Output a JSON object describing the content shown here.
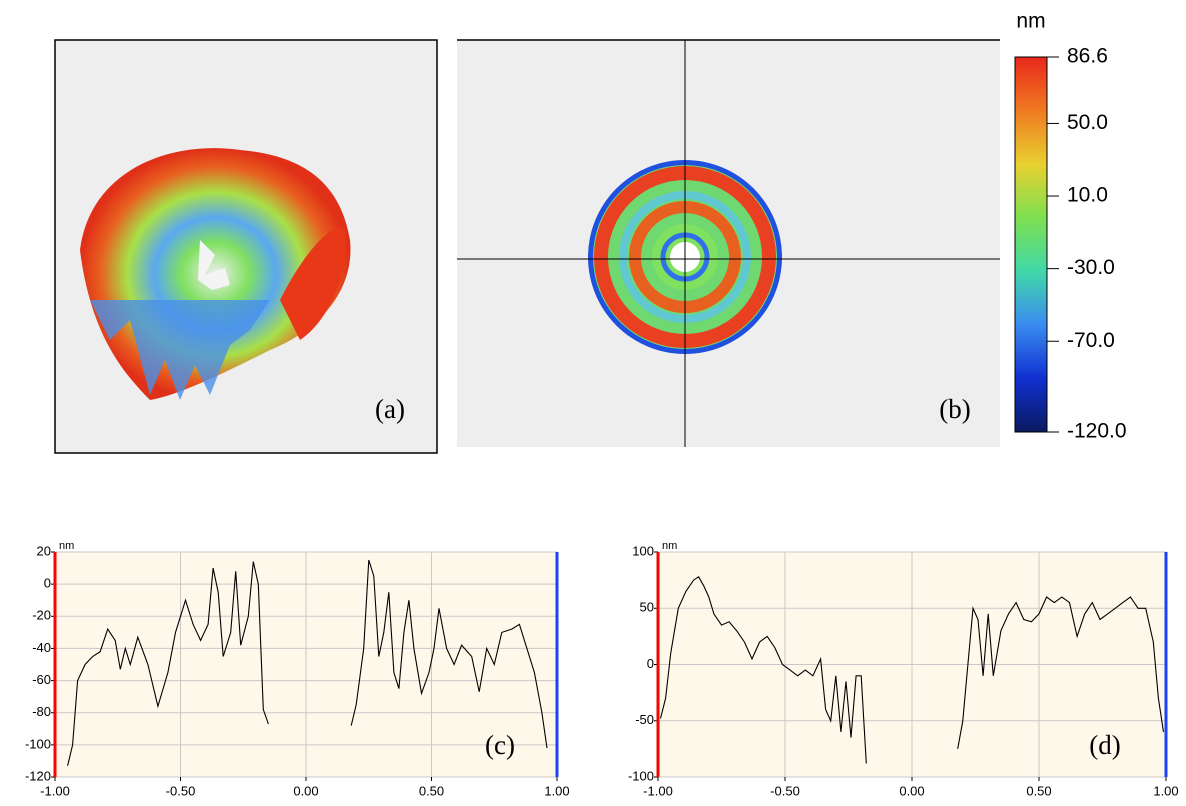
{
  "chart_data": [
    {
      "type": "surface",
      "label": "(a)"
    },
    {
      "type": "map",
      "label": "(b)",
      "colorbar": {
        "title": "nm",
        "lim": [
          -120,
          86.6
        ],
        "ticks": [
          86.6,
          {
            "value": 50,
            "label": "50.0"
          },
          {
            "value": 10,
            "label": "10.0"
          },
          {
            "value": -30,
            "label": "-30.0"
          },
          {
            "value": -70,
            "label": "-70.0"
          },
          {
            "value": -120,
            "label": "-120.0"
          }
        ],
        "colors": [
          "#e8281c",
          "#f07a20",
          "#e8d030",
          "#7ee050",
          "#40d8a8",
          "#3a8cf0",
          "#1030d0",
          "#0a1a60"
        ]
      }
    },
    {
      "type": "line",
      "label": "(c)",
      "y_unit": "nm",
      "background": "#fdf8ea",
      "left_edge_color": "#ff0000",
      "right_edge_color": "#2040ff",
      "grid": true,
      "xlim": [
        -1,
        1
      ],
      "xticks": [
        {
          "value": -1,
          "label": "-1.00"
        },
        {
          "value": -0.5,
          "label": "-0.50"
        },
        {
          "value": 0,
          "label": "0.00"
        },
        {
          "value": 0.5,
          "label": "0.50"
        },
        {
          "value": 1,
          "label": "1.00"
        }
      ],
      "ylim": [
        -120,
        20
      ],
      "yticks": [
        -120,
        -100,
        -80,
        -60,
        -40,
        -20,
        0,
        20
      ],
      "series": [
        {
          "color": "#000000",
          "x": [
            -0.95,
            -0.93,
            -0.91,
            -0.88,
            -0.85,
            -0.82,
            -0.79,
            -0.76,
            -0.74,
            -0.72,
            -0.7,
            -0.67,
            -0.63,
            -0.59,
            -0.55,
            -0.52,
            -0.48,
            -0.45,
            -0.42,
            -0.39,
            -0.37,
            -0.35,
            -0.33,
            -0.3,
            -0.28,
            -0.26,
            -0.23,
            -0.21,
            -0.19,
            -0.17,
            -0.15,
            null,
            0.18,
            0.2,
            0.23,
            0.25,
            0.27,
            0.29,
            0.31,
            0.33,
            0.35,
            0.37,
            0.39,
            0.41,
            0.43,
            0.46,
            0.49,
            0.51,
            0.53,
            0.56,
            0.59,
            0.62,
            0.66,
            0.69,
            0.72,
            0.75,
            0.78,
            0.82,
            0.85,
            0.88,
            0.91,
            0.94,
            0.96
          ],
          "values": [
            -113,
            -100,
            -60,
            -50,
            -45,
            -42,
            -28,
            -35,
            -53,
            -40,
            -50,
            -33,
            -50,
            -76,
            -55,
            -30,
            -10,
            -25,
            -35,
            -25,
            10,
            -5,
            -45,
            -30,
            8,
            -38,
            -20,
            14,
            0,
            -78,
            -87,
            null,
            -88,
            -75,
            -40,
            15,
            5,
            -45,
            -30,
            -5,
            -55,
            -65,
            -30,
            -10,
            -40,
            -68,
            -55,
            -40,
            -15,
            -40,
            -50,
            -38,
            -45,
            -67,
            -40,
            -50,
            -30,
            -28,
            -25,
            -40,
            -55,
            -80,
            -102
          ]
        }
      ]
    },
    {
      "type": "line",
      "label": "(d)",
      "y_unit": "nm",
      "background": "#fdf8ea",
      "left_edge_color": "#ff0000",
      "right_edge_color": "#2040ff",
      "grid": true,
      "xlim": [
        -1,
        1
      ],
      "xticks": [
        {
          "value": -1,
          "label": "-1.00"
        },
        {
          "value": -0.5,
          "label": "-0.50"
        },
        {
          "value": 0,
          "label": "0.00"
        },
        {
          "value": 0.5,
          "label": "0.50"
        },
        {
          "value": 1,
          "label": "1.00"
        }
      ],
      "ylim": [
        -100,
        100
      ],
      "yticks": [
        -100,
        -50,
        0,
        50,
        100
      ],
      "series": [
        {
          "color": "#000000",
          "x": [
            -0.99,
            -0.97,
            -0.95,
            -0.92,
            -0.89,
            -0.86,
            -0.84,
            -0.82,
            -0.8,
            -0.78,
            -0.75,
            -0.72,
            -0.69,
            -0.66,
            -0.63,
            -0.6,
            -0.57,
            -0.54,
            -0.51,
            -0.48,
            -0.45,
            -0.42,
            -0.39,
            -0.36,
            -0.34,
            -0.32,
            -0.3,
            -0.28,
            -0.26,
            -0.24,
            -0.22,
            -0.2,
            -0.18,
            null,
            0.18,
            0.2,
            0.22,
            0.24,
            0.26,
            0.28,
            0.3,
            0.32,
            0.35,
            0.38,
            0.41,
            0.44,
            0.47,
            0.5,
            0.53,
            0.56,
            0.59,
            0.62,
            0.65,
            0.68,
            0.71,
            0.74,
            0.77,
            0.8,
            0.83,
            0.86,
            0.89,
            0.92,
            0.95,
            0.97,
            0.99
          ],
          "values": [
            -48,
            -30,
            10,
            50,
            65,
            75,
            78,
            70,
            60,
            45,
            35,
            38,
            30,
            20,
            5,
            20,
            25,
            15,
            0,
            -5,
            -10,
            -5,
            -10,
            5,
            -40,
            -50,
            -10,
            -60,
            -15,
            -65,
            -10,
            -10,
            -88,
            null,
            -75,
            -50,
            0,
            50,
            40,
            -10,
            45,
            -10,
            30,
            45,
            55,
            40,
            38,
            45,
            60,
            55,
            60,
            55,
            25,
            45,
            55,
            40,
            45,
            50,
            55,
            60,
            50,
            50,
            20,
            -30,
            -60
          ]
        }
      ]
    }
  ]
}
